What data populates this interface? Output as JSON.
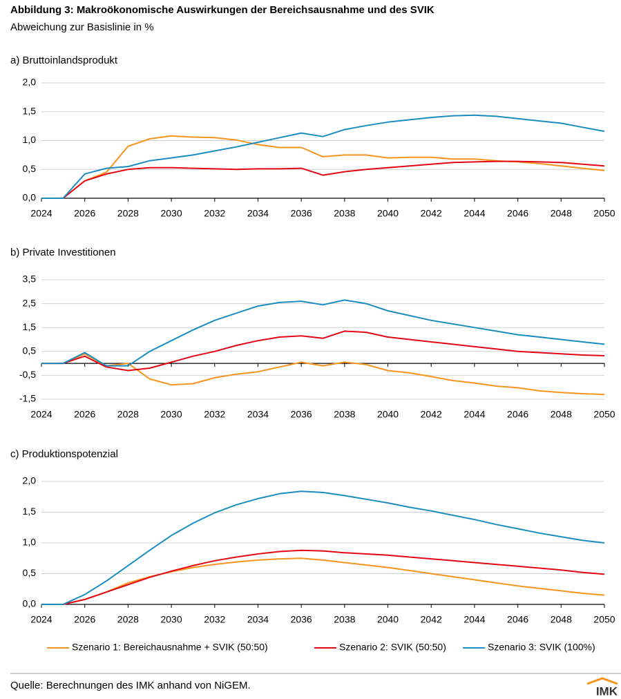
{
  "title": "Abbildung 3: Makroökonomische Auswirkungen der Bereichsausnahme und des SVIK",
  "subtitle": "Abweichung zur Basislinie in %",
  "source": "Quelle: Berechnungen des IMK anhand von NiGEM.",
  "logo": "IMK",
  "chart_data": [
    {
      "type": "line",
      "title": "a) Bruttoinlandsprodukt",
      "x": [
        2024,
        2025,
        2026,
        2027,
        2028,
        2029,
        2030,
        2031,
        2032,
        2033,
        2034,
        2035,
        2036,
        2037,
        2038,
        2039,
        2040,
        2041,
        2042,
        2043,
        2044,
        2045,
        2046,
        2047,
        2048,
        2049,
        2050
      ],
      "xlim": [
        2024,
        2050
      ],
      "xticks": [
        2024,
        2026,
        2028,
        2030,
        2032,
        2034,
        2036,
        2038,
        2040,
        2042,
        2044,
        2046,
        2048,
        2050
      ],
      "ylim": [
        0,
        2
      ],
      "yticks": [
        {
          "value": 0,
          "label": "0,0"
        },
        {
          "value": 0.5,
          "label": "0,5"
        },
        {
          "value": 1,
          "label": "1,0"
        },
        {
          "value": 1.5,
          "label": "1,5"
        },
        {
          "value": 2,
          "label": "2,0"
        }
      ],
      "grid": true,
      "series": [
        {
          "name": "Szenario 1: Bereichausnahme + SVIK (50:50)",
          "color": "#f7941d",
          "values": [
            0,
            0,
            0.3,
            0.45,
            0.9,
            1.03,
            1.08,
            1.06,
            1.05,
            1.01,
            0.93,
            0.88,
            0.88,
            0.72,
            0.75,
            0.75,
            0.7,
            0.71,
            0.71,
            0.68,
            0.68,
            0.65,
            0.63,
            0.6,
            0.56,
            0.52,
            0.48
          ]
        },
        {
          "name": "Szenario 2: SVIK (50:50)",
          "color": "#e30613",
          "values": [
            0,
            0,
            0.3,
            0.42,
            0.5,
            0.53,
            0.53,
            0.52,
            0.51,
            0.5,
            0.51,
            0.51,
            0.52,
            0.4,
            0.46,
            0.5,
            0.53,
            0.56,
            0.59,
            0.62,
            0.63,
            0.64,
            0.64,
            0.63,
            0.62,
            0.59,
            0.56
          ]
        },
        {
          "name": "Szenario 3: SVIK (100%)",
          "color": "#1a8cbf",
          "values": [
            0,
            0,
            0.42,
            0.52,
            0.55,
            0.65,
            0.7,
            0.75,
            0.82,
            0.89,
            0.97,
            1.05,
            1.13,
            1.07,
            1.19,
            1.26,
            1.32,
            1.36,
            1.4,
            1.43,
            1.44,
            1.42,
            1.38,
            1.34,
            1.3,
            1.23,
            1.16
          ]
        }
      ]
    },
    {
      "type": "line",
      "title": "b) Private Investitionen",
      "x": [
        2024,
        2025,
        2026,
        2027,
        2028,
        2029,
        2030,
        2031,
        2032,
        2033,
        2034,
        2035,
        2036,
        2037,
        2038,
        2039,
        2040,
        2041,
        2042,
        2043,
        2044,
        2045,
        2046,
        2047,
        2048,
        2049,
        2050
      ],
      "xlim": [
        2024,
        2050
      ],
      "xticks": [
        2024,
        2026,
        2028,
        2030,
        2032,
        2034,
        2036,
        2038,
        2040,
        2042,
        2044,
        2046,
        2048,
        2050
      ],
      "ylim": [
        -1.5,
        3.5
      ],
      "yticks": [
        {
          "value": -1.5,
          "label": "-1,5"
        },
        {
          "value": -0.5,
          "label": "-0,5"
        },
        {
          "value": 0.5,
          "label": "0,5"
        },
        {
          "value": 1.5,
          "label": "1,5"
        },
        {
          "value": 2.5,
          "label": "2,5"
        },
        {
          "value": 3.5,
          "label": "3,5"
        }
      ],
      "grid": true,
      "series": [
        {
          "color": "#f7941d",
          "values": [
            0,
            0,
            0.4,
            -0.1,
            0,
            -0.65,
            -0.9,
            -0.85,
            -0.6,
            -0.45,
            -0.35,
            -0.15,
            0.05,
            -0.1,
            0.05,
            -0.05,
            -0.3,
            -0.4,
            -0.55,
            -0.72,
            -0.82,
            -0.95,
            -1.02,
            -1.15,
            -1.22,
            -1.27,
            -1.3
          ]
        },
        {
          "color": "#e30613",
          "values": [
            0,
            0,
            0.3,
            -0.15,
            -0.3,
            -0.2,
            0.05,
            0.3,
            0.5,
            0.75,
            0.95,
            1.1,
            1.15,
            1.05,
            1.35,
            1.3,
            1.1,
            1,
            0.9,
            0.8,
            0.7,
            0.6,
            0.5,
            0.45,
            0.4,
            0.35,
            0.32
          ]
        },
        {
          "color": "#1a8cbf",
          "values": [
            0,
            0,
            0.45,
            -0.1,
            -0.1,
            0.5,
            0.95,
            1.4,
            1.8,
            2.1,
            2.4,
            2.55,
            2.6,
            2.45,
            2.65,
            2.5,
            2.2,
            2,
            1.8,
            1.65,
            1.5,
            1.35,
            1.2,
            1.1,
            1,
            0.9,
            0.8
          ]
        }
      ]
    },
    {
      "type": "line",
      "title": "c) Produktionspotenzial",
      "x": [
        2024,
        2025,
        2026,
        2027,
        2028,
        2029,
        2030,
        2031,
        2032,
        2033,
        2034,
        2035,
        2036,
        2037,
        2038,
        2039,
        2040,
        2041,
        2042,
        2043,
        2044,
        2045,
        2046,
        2047,
        2048,
        2049,
        2050
      ],
      "xlim": [
        2024,
        2050
      ],
      "xticks": [
        2024,
        2026,
        2028,
        2030,
        2032,
        2034,
        2036,
        2038,
        2040,
        2042,
        2044,
        2046,
        2048,
        2050
      ],
      "ylim": [
        0,
        2
      ],
      "yticks": [
        {
          "value": 0,
          "label": "0,0"
        },
        {
          "value": 0.5,
          "label": "0,5"
        },
        {
          "value": 1,
          "label": "1,0"
        },
        {
          "value": 1.5,
          "label": "1,5"
        },
        {
          "value": 2,
          "label": "2,0"
        }
      ],
      "grid": true,
      "series": [
        {
          "color": "#f7941d",
          "values": [
            0,
            0,
            0.08,
            0.2,
            0.35,
            0.45,
            0.53,
            0.6,
            0.65,
            0.69,
            0.72,
            0.74,
            0.75,
            0.72,
            0.68,
            0.64,
            0.6,
            0.55,
            0.5,
            0.45,
            0.4,
            0.35,
            0.3,
            0.26,
            0.22,
            0.18,
            0.15
          ]
        },
        {
          "color": "#e30613",
          "values": [
            0,
            0,
            0.08,
            0.2,
            0.32,
            0.44,
            0.54,
            0.63,
            0.71,
            0.77,
            0.82,
            0.86,
            0.88,
            0.87,
            0.84,
            0.82,
            0.8,
            0.77,
            0.74,
            0.71,
            0.68,
            0.65,
            0.62,
            0.59,
            0.56,
            0.52,
            0.49
          ]
        },
        {
          "color": "#1a8cbf",
          "values": [
            0,
            0,
            0.16,
            0.38,
            0.63,
            0.88,
            1.12,
            1.32,
            1.49,
            1.62,
            1.72,
            1.8,
            1.84,
            1.82,
            1.77,
            1.71,
            1.65,
            1.58,
            1.52,
            1.45,
            1.38,
            1.3,
            1.23,
            1.16,
            1.1,
            1.04,
            1
          ]
        }
      ]
    }
  ]
}
